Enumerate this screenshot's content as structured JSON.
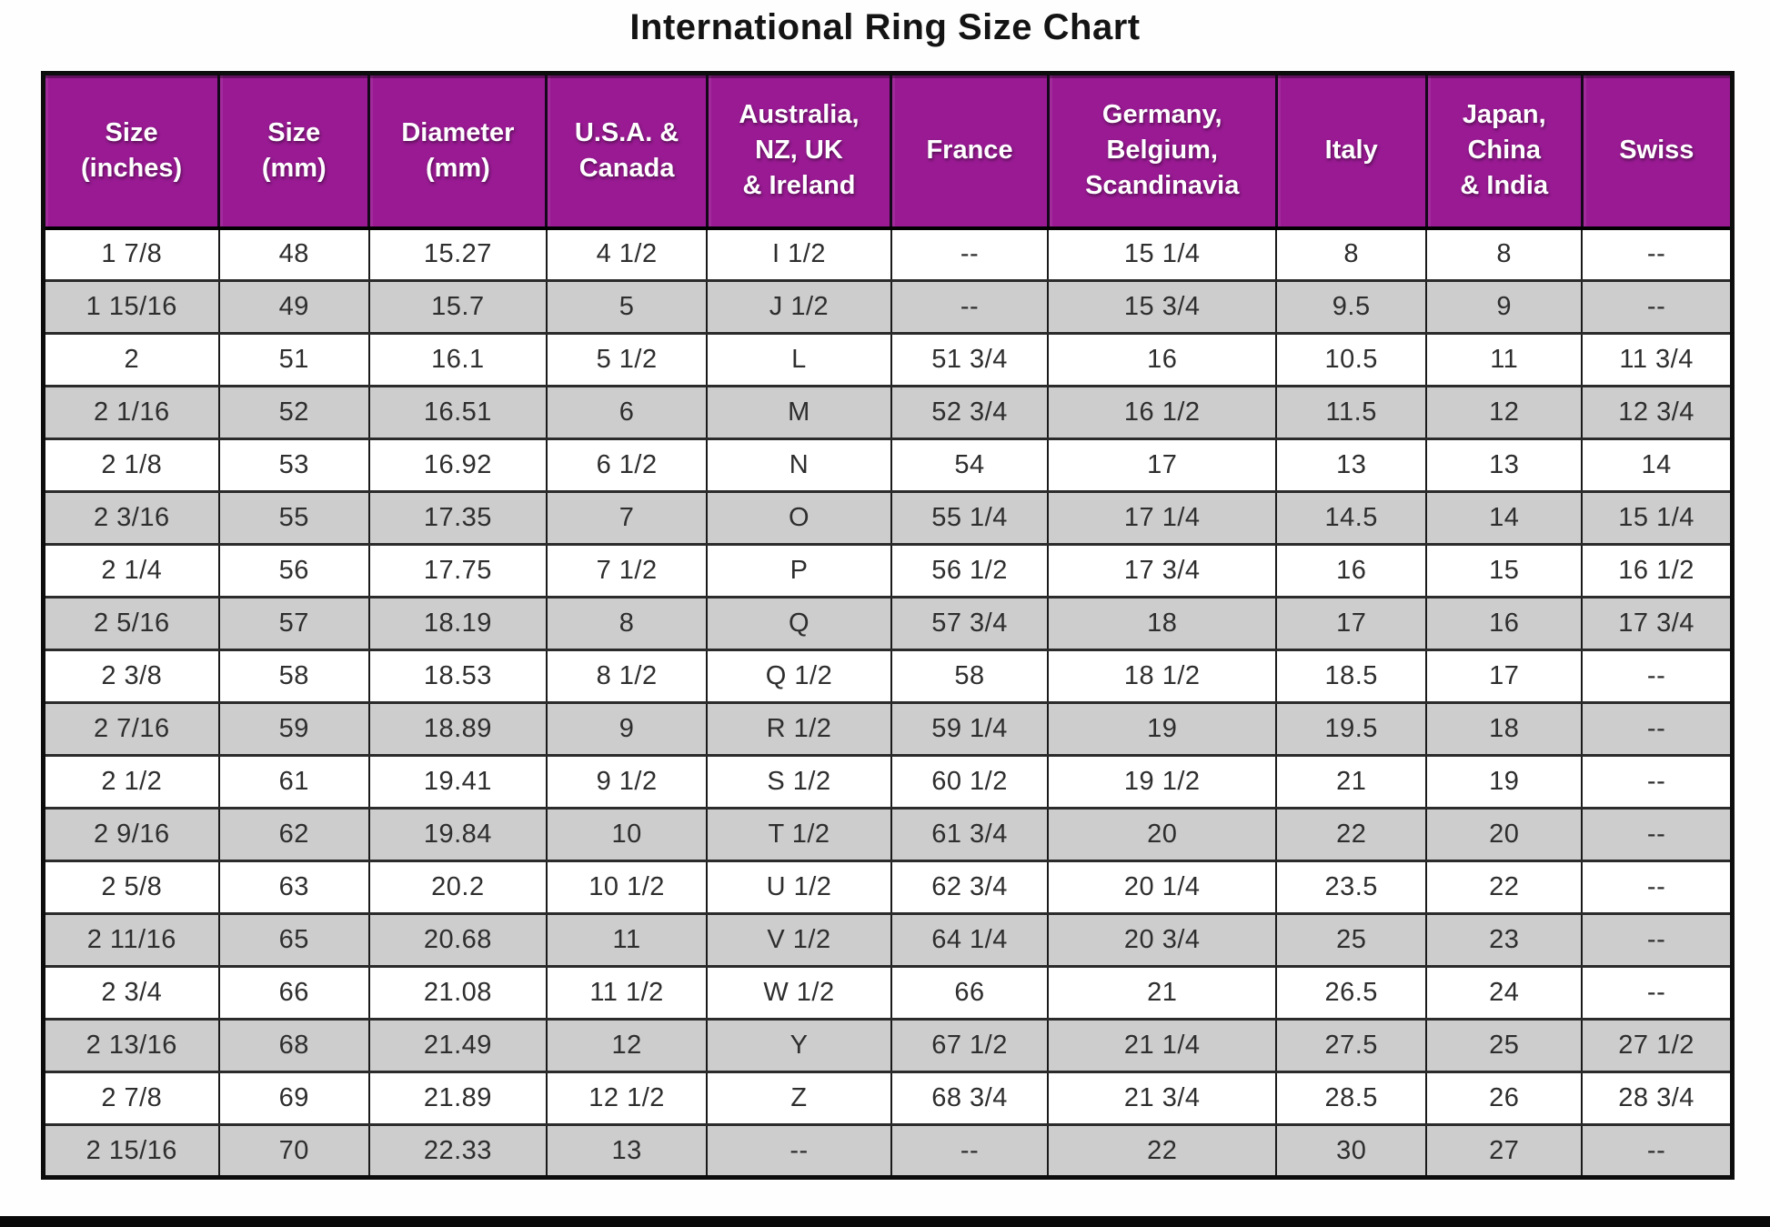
{
  "title": "International Ring Size Chart",
  "colors": {
    "header_bg": "#991A93",
    "row_bg": "#FFFFFF",
    "row_alt_bg": "#CDCDCD",
    "border": "#1A1A1A"
  },
  "chart_data": {
    "type": "table",
    "title": "International Ring Size Chart",
    "legend_position": "none",
    "grid": true,
    "columns": [
      {
        "id": "size-inches",
        "label": "Size\n(inches)",
        "width": 10.4
      },
      {
        "id": "size-mm",
        "label": "Size\n(mm)",
        "width": 8.9
      },
      {
        "id": "diameter-mm",
        "label": "Diameter\n(mm)",
        "width": 10.5
      },
      {
        "id": "usa-canada",
        "label": "U.S.A. &\nCanada",
        "width": 9.5
      },
      {
        "id": "australia-nz-uk-ireland",
        "label": "Australia,\nNZ, UK\n& Ireland",
        "width": 10.9
      },
      {
        "id": "france",
        "label": "France",
        "width": 9.3
      },
      {
        "id": "germany-belgium-scandinavia",
        "label": "Germany,\nBelgium,\nScandinavia",
        "width": 13.5
      },
      {
        "id": "italy",
        "label": "Italy",
        "width": 8.9
      },
      {
        "id": "japan-china-india",
        "label": "Japan,\nChina\n& India",
        "width": 9.2
      },
      {
        "id": "swiss",
        "label": "Swiss",
        "width": 8.9
      }
    ],
    "rows": [
      [
        "1 7/8",
        "48",
        "15.27",
        "4 1/2",
        "I 1/2",
        "--",
        "15 1/4",
        "8",
        "8",
        "--"
      ],
      [
        "1 15/16",
        "49",
        "15.7",
        "5",
        "J 1/2",
        "--",
        "15 3/4",
        "9.5",
        "9",
        "--"
      ],
      [
        "2",
        "51",
        "16.1",
        "5 1/2",
        "L",
        "51 3/4",
        "16",
        "10.5",
        "11",
        "11 3/4"
      ],
      [
        "2 1/16",
        "52",
        "16.51",
        "6",
        "M",
        "52 3/4",
        "16 1/2",
        "11.5",
        "12",
        "12 3/4"
      ],
      [
        "2 1/8",
        "53",
        "16.92",
        "6 1/2",
        "N",
        "54",
        "17",
        "13",
        "13",
        "14"
      ],
      [
        "2 3/16",
        "55",
        "17.35",
        "7",
        "O",
        "55 1/4",
        "17 1/4",
        "14.5",
        "14",
        "15 1/4"
      ],
      [
        "2 1/4",
        "56",
        "17.75",
        "7 1/2",
        "P",
        "56 1/2",
        "17 3/4",
        "16",
        "15",
        "16 1/2"
      ],
      [
        "2 5/16",
        "57",
        "18.19",
        "8",
        "Q",
        "57 3/4",
        "18",
        "17",
        "16",
        "17 3/4"
      ],
      [
        "2 3/8",
        "58",
        "18.53",
        "8 1/2",
        "Q 1/2",
        "58",
        "18 1/2",
        "18.5",
        "17",
        "--"
      ],
      [
        "2 7/16",
        "59",
        "18.89",
        "9",
        "R 1/2",
        "59 1/4",
        "19",
        "19.5",
        "18",
        "--"
      ],
      [
        "2 1/2",
        "61",
        "19.41",
        "9 1/2",
        "S 1/2",
        "60 1/2",
        "19 1/2",
        "21",
        "19",
        "--"
      ],
      [
        "2 9/16",
        "62",
        "19.84",
        "10",
        "T 1/2",
        "61 3/4",
        "20",
        "22",
        "20",
        "--"
      ],
      [
        "2 5/8",
        "63",
        "20.2",
        "10 1/2",
        "U 1/2",
        "62 3/4",
        "20 1/4",
        "23.5",
        "22",
        "--"
      ],
      [
        "2 11/16",
        "65",
        "20.68",
        "11",
        "V 1/2",
        "64 1/4",
        "20 3/4",
        "25",
        "23",
        "--"
      ],
      [
        "2 3/4",
        "66",
        "21.08",
        "11 1/2",
        "W 1/2",
        "66",
        "21",
        "26.5",
        "24",
        "--"
      ],
      [
        "2 13/16",
        "68",
        "21.49",
        "12",
        "Y",
        "67 1/2",
        "21 1/4",
        "27.5",
        "25",
        "27 1/2"
      ],
      [
        "2 7/8",
        "69",
        "21.89",
        "12 1/2",
        "Z",
        "68 3/4",
        "21 3/4",
        "28.5",
        "26",
        "28 3/4"
      ],
      [
        "2 15/16",
        "70",
        "22.33",
        "13",
        "--",
        "--",
        "22",
        "30",
        "27",
        "--"
      ]
    ]
  }
}
